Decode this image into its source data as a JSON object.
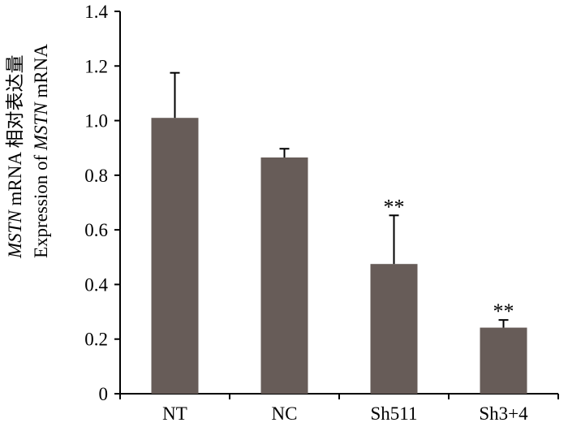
{
  "chart_data": {
    "type": "bar",
    "categories": [
      "NT",
      "NC",
      "Sh511",
      "Sh3+4"
    ],
    "values": [
      1.01,
      0.865,
      0.475,
      0.242
    ],
    "errors": [
      0.165,
      0.032,
      0.178,
      0.028
    ],
    "significance": [
      "",
      "",
      "**",
      "**"
    ],
    "ylabel_line1_italic": "MSTN",
    "ylabel_line1_rest": " mRNA 相对表达量",
    "ylabel_line2_prefix": "Expression of ",
    "ylabel_line2_italic": "MSTN",
    "ylabel_line2_suffix": " mRNA",
    "ylim": [
      0,
      1.4
    ],
    "yticks": [
      "0",
      "0.2",
      "0.4",
      "0.6",
      "0.8",
      "1.0",
      "1.2",
      "1.4"
    ],
    "bar_color": "#675c58",
    "grid": false
  }
}
